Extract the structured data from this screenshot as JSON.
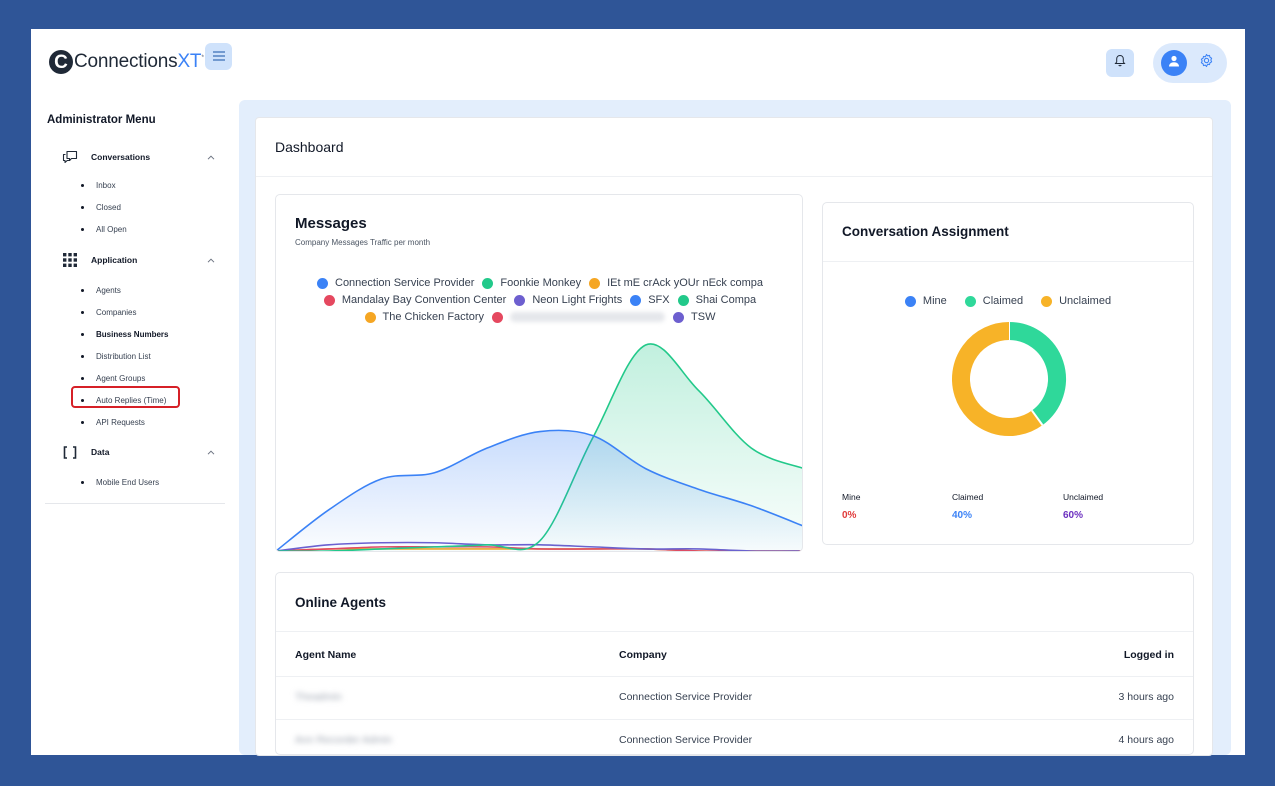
{
  "app": {
    "logo_letter": "C",
    "logo_text": "Connections",
    "logo_suffix": "XT",
    "logo_tm": "*"
  },
  "header": {
    "menu_icon": "hamburger-icon",
    "notification_icon": "bell-icon",
    "avatar_icon": "user-icon",
    "settings_icon": "gear-icon"
  },
  "sidebar": {
    "heading": "Administrator Menu",
    "groups": [
      {
        "label": "Conversations",
        "icon": "chat-icon",
        "items": [
          "Inbox",
          "Closed",
          "All Open"
        ]
      },
      {
        "label": "Application",
        "icon": "grid-icon",
        "items": [
          "Agents",
          "Companies",
          "Business Numbers",
          "Distribution List",
          "Agent Groups",
          "Auto Replies (Time)",
          "API Requests"
        ]
      },
      {
        "label": "Data",
        "icon": "brackets-icon",
        "items": [
          "Mobile End Users"
        ]
      }
    ],
    "active_item": "Business Numbers"
  },
  "dashboard": {
    "title": "Dashboard"
  },
  "messages": {
    "title": "Messages",
    "subtitle": "Company Messages Traffic per month",
    "legend_row1": [
      {
        "name": "Connection Service Provider",
        "color": "#3b82f6"
      },
      {
        "name": "Foonkie Monkey",
        "color": "#22c98a"
      },
      {
        "name": "IEt mE crAck yOUr nEck compa",
        "color": "#f5a623"
      }
    ],
    "legend_row2": [
      {
        "name": "Mandalay Bay Convention Center",
        "color": "#e5485f"
      },
      {
        "name": "Neon Light Frights",
        "color": "#6d5fcf"
      },
      {
        "name": "SFX",
        "color": "#3b82f6"
      },
      {
        "name": "Shai Compa",
        "color": "#22c98a"
      }
    ],
    "legend_row3": [
      {
        "name": "The Chicken Factory",
        "color": "#f5a623"
      },
      {
        "name": "",
        "color": "#e5485f"
      },
      {
        "name": "TSW",
        "color": "#6d5fcf"
      }
    ]
  },
  "chart_data": {
    "type": "area",
    "title": "Messages",
    "subtitle": "Company Messages Traffic per month",
    "x": [
      0,
      1,
      2,
      3,
      4,
      5,
      6,
      7,
      8,
      9,
      10
    ],
    "ylim": [
      0,
      100
    ],
    "series": [
      {
        "name": "Connection Service Provider",
        "color": "#3b82f6",
        "values": [
          0,
          20,
          35,
          38,
          50,
          58,
          56,
          40,
          30,
          22,
          12
        ]
      },
      {
        "name": "Foonkie Monkey",
        "color": "#22c98a",
        "values": [
          0,
          0,
          1,
          2,
          3,
          5,
          55,
          100,
          78,
          50,
          40
        ]
      },
      {
        "name": "Neon Light Frights",
        "color": "#6d5fcf",
        "values": [
          0,
          3,
          4,
          4,
          3,
          3,
          2,
          1,
          1,
          0,
          0
        ]
      },
      {
        "name": "Mandalay Bay Convention Center",
        "color": "#e5485f",
        "values": [
          0,
          1,
          2,
          2,
          2,
          1,
          1,
          1,
          0,
          0,
          0
        ]
      },
      {
        "name": "The Chicken Factory",
        "color": "#f5a623",
        "values": [
          0,
          1,
          1,
          1,
          1,
          1,
          1,
          1,
          0,
          0,
          0
        ]
      }
    ],
    "grid": false,
    "legend_position": "top"
  },
  "assignment": {
    "title": "Conversation Assignment",
    "legend": [
      {
        "name": "Mine",
        "color": "#3b82f6"
      },
      {
        "name": "Claimed",
        "color": "#2fd89a"
      },
      {
        "name": "Unclaimed",
        "color": "#f7b328"
      }
    ],
    "donut_fractions": [
      0,
      0.4,
      0.6
    ],
    "stats": [
      {
        "label": "Mine",
        "value": "0%",
        "color": "#e03b3b"
      },
      {
        "label": "Claimed",
        "value": "40%",
        "color": "#3b82f6"
      },
      {
        "label": "Unclaimed",
        "value": "60%",
        "color": "#6b2fbf"
      }
    ]
  },
  "agents": {
    "title": "Online Agents",
    "columns": [
      "Agent Name",
      "Company",
      "Logged in"
    ],
    "rows": [
      {
        "name": "Theadmin",
        "company": "Connection Service Provider",
        "logged": "3 hours ago"
      },
      {
        "name": "Ann Recorder Admin",
        "company": "Connection Service Provider",
        "logged": "4 hours ago"
      }
    ]
  }
}
